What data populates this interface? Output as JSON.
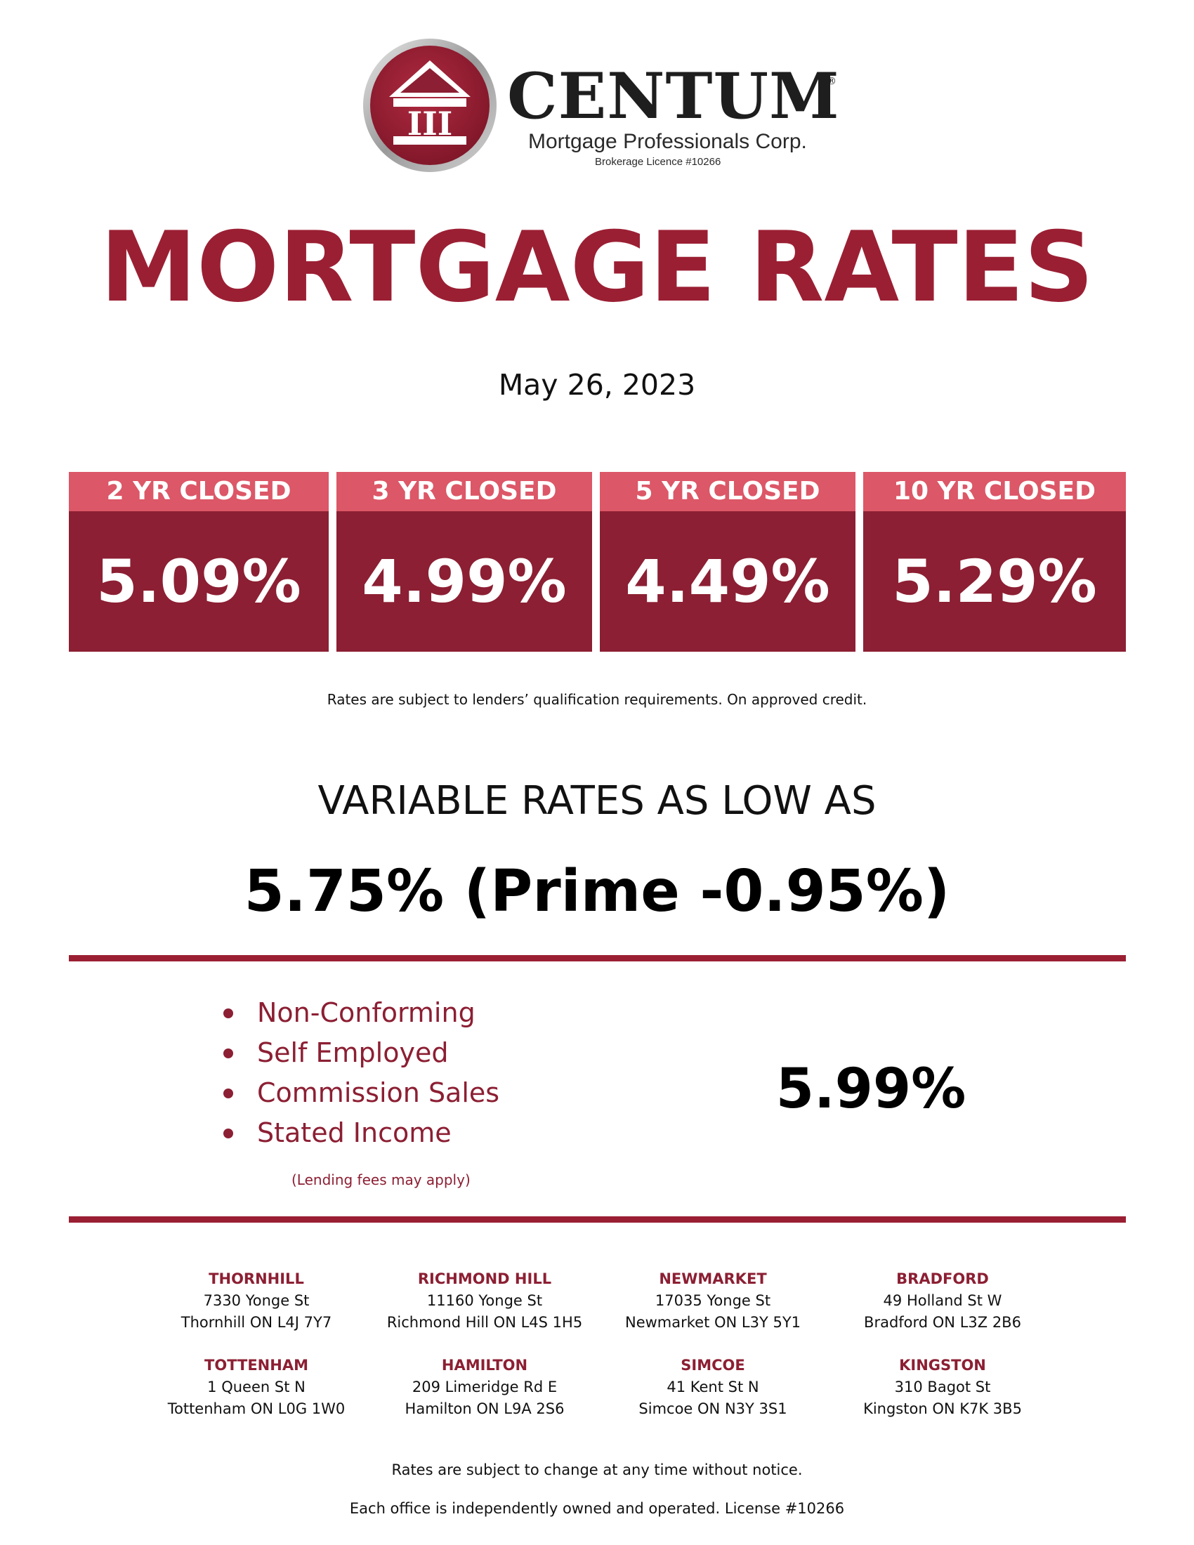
{
  "brand": {
    "name": "CENTUM",
    "registered_mark": "®",
    "emblem_text": "III",
    "subtitle": "Mortgage Professionals Corp.",
    "licence": "Brokerage Licence #10266",
    "colors": {
      "primary": "#9b1f33",
      "header_pink": "#dc5767"
    }
  },
  "title": "MORTGAGE RATES",
  "date": "May 26, 2023",
  "fixed_rates": [
    {
      "term": "2 YR CLOSED",
      "rate": "5.09%"
    },
    {
      "term": "3 YR CLOSED",
      "rate": "4.99%"
    },
    {
      "term": "5 YR CLOSED",
      "rate": "4.49%"
    },
    {
      "term": "10 YR CLOSED",
      "rate": "5.29%"
    }
  ],
  "rates_disclaimer": "Rates are subject to lenders’ qualification requirements. On approved credit.",
  "variable": {
    "heading": "VARIABLE RATES AS LOW AS",
    "rate": "5.75% (Prime -0.95%)"
  },
  "special_programs": {
    "items": [
      "Non-Conforming",
      "Self Employed",
      "Commission Sales",
      "Stated Income"
    ],
    "rate": "5.99%",
    "note": "(Lending fees may apply)"
  },
  "offices": [
    {
      "name": "THORNHILL",
      "street": "7330 Yonge St",
      "city": "Thornhill ON  L4J 7Y7"
    },
    {
      "name": "RICHMOND HILL",
      "street": "11160 Yonge St",
      "city": "Richmond Hill ON  L4S 1H5"
    },
    {
      "name": "NEWMARKET",
      "street": "17035 Yonge St",
      "city": "Newmarket ON  L3Y 5Y1"
    },
    {
      "name": "BRADFORD",
      "street": "49 Holland St W",
      "city": "Bradford ON  L3Z 2B6"
    },
    {
      "name": "TOTTENHAM",
      "street": "1 Queen St N",
      "city": "Tottenham ON  L0G 1W0"
    },
    {
      "name": "HAMILTON",
      "street": "209 Limeridge Rd E",
      "city": "Hamilton ON  L9A 2S6"
    },
    {
      "name": "SIMCOE",
      "street": "41 Kent St N",
      "city": "Simcoe ON  N3Y 3S1"
    },
    {
      "name": "KINGSTON",
      "street": "310 Bagot St",
      "city": "Kingston ON  K7K 3B5"
    }
  ],
  "footer": {
    "change_notice": "Rates are subject to change at any time without notice.",
    "ownership": "Each office is independently owned and operated. License #10266"
  }
}
